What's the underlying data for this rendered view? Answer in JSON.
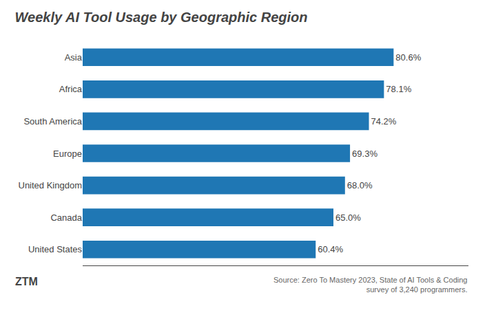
{
  "chart_data": {
    "type": "bar",
    "orientation": "horizontal",
    "title": "Weekly AI Tool Usage by Geographic Region",
    "categories": [
      "Asia",
      "Africa",
      "South America",
      "Europe",
      "United Kingdom",
      "Canada",
      "United States"
    ],
    "values": [
      80.6,
      78.1,
      74.2,
      69.3,
      68.0,
      65.0,
      60.4
    ],
    "value_labels": [
      "80.6%",
      "78.1%",
      "74.2%",
      "69.3%",
      "68.0%",
      "65.0%",
      "60.4%"
    ],
    "data_labels": true,
    "xlim": [
      0,
      100
    ],
    "grid": false,
    "tick_labels": "y",
    "annotations": [
      "Source: Zero To Mastery 2023, State of AI Tools & Coding\nsurvey of 3,240 programmers.",
      "ZTM"
    ]
  }
}
